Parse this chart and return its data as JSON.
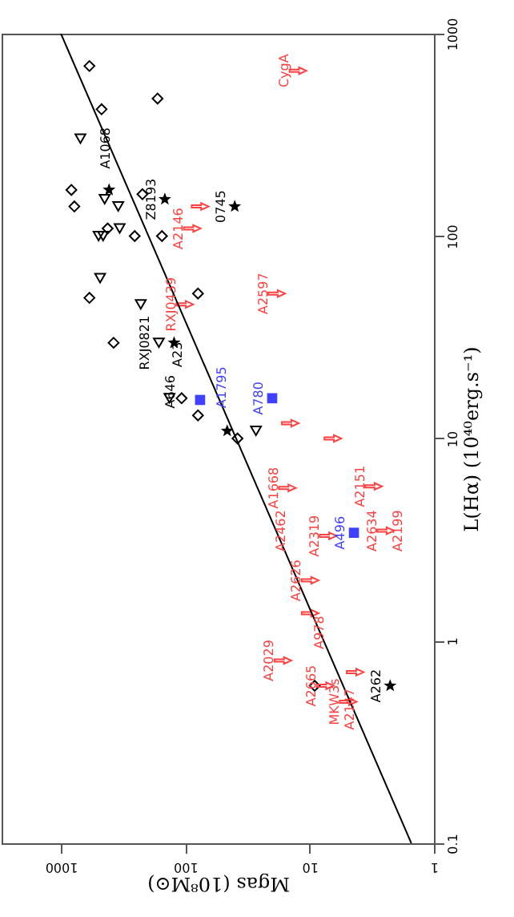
{
  "chart_data": {
    "type": "scatter",
    "xlabel": "Mgas (10⁸M⊙)",
    "ylabel": "L(Hα) (10⁴⁰erg.s⁻¹)",
    "xlim": [
      3000,
      1
    ],
    "ylim": [
      0.1,
      1000
    ],
    "xticks": [
      1000,
      100,
      10,
      1
    ],
    "yticks": [
      1000,
      100,
      10,
      1,
      0.1
    ],
    "log": "xy",
    "series": [
      {
        "type": "scatter",
        "marker": "diamond",
        "color": "#000000",
        "x": [
          590,
          471,
          167,
          824,
          780,
          221,
          421,
          255,
          154,
          590,
          79,
          377,
          107,
          79,
          38,
          9.1
        ],
        "values": [
          692,
          423,
          478,
          169,
          140,
          161,
          109,
          100,
          100,
          49.5,
          52,
          29.7,
          15.8,
          13.0,
          10,
          0.6
        ]
      },
      {
        "type": "scatter",
        "marker": "triangle",
        "color": "#000000",
        "x": [
          697,
          445,
          346,
          337,
          498,
          458,
          484,
          228,
          163,
          134,
          27
        ],
        "values": [
          303,
          152,
          140,
          109,
          100,
          100,
          62,
          46,
          29.7,
          15.8,
          10.9
        ]
      },
      {
        "type": "scatter",
        "marker": "star",
        "color": "#000000",
        "x": [
          410,
          146,
          40,
          123,
          46,
          2.25
        ],
        "values": [
          169,
          152,
          140,
          29.7,
          10.9,
          0.6
        ]
      },
      {
        "type": "scatter",
        "marker": "square",
        "color": "#4040ff",
        "x": [
          76,
          20,
          4.4
        ],
        "values": [
          15.5,
          15.8,
          3.42
        ]
      },
      {
        "type": "scatter",
        "color": "#ff4040",
        "x": [
          12.4,
          76,
          88,
          101,
          18.4,
          14.3,
          6.5,
          15.1,
          3.06,
          7.1,
          2.45,
          9.9,
          9.9,
          16.4,
          7.5,
          4.3,
          4.9
        ],
        "values": [
          656,
          140,
          109,
          46,
          52,
          11.9,
          10,
          5.7,
          5.8,
          3.3,
          3.5,
          1.99,
          1.37,
          0.8,
          0.6,
          0.7,
          0.5
        ]
      },
      {
        "type": "line",
        "color": "#000000",
        "x": [
          1000,
          1.52
        ],
        "values": [
          1000,
          0.1
        ]
      }
    ],
    "annotations": [
      {
        "text": "A1068",
        "x": 433,
        "y": 272
      },
      {
        "text": "Z8193",
        "x": 146,
        "y": 152
      },
      {
        "text": "0745",
        "x": 40,
        "y": 140
      },
      {
        "text": "CygA",
        "x": 12.4,
        "y": 656
      },
      {
        "text": "RXJ0439",
        "x": 101,
        "y": 46
      },
      {
        "text": "A2146",
        "x": 88,
        "y": 109
      },
      {
        "text": "RXJ0821",
        "x": 163,
        "y": 29.7
      },
      {
        "text": "A23",
        "x": 113,
        "y": 26
      },
      {
        "text": "A2597",
        "x": 18.4,
        "y": 52
      },
      {
        "text": "A1795",
        "x": 50,
        "y": 17.9
      },
      {
        "text": "A780",
        "x": 20,
        "y": 15.8
      },
      {
        "text": "A646",
        "x": 130,
        "y": 17
      },
      {
        "text": "A1668",
        "x": 15.1,
        "y": 5.7
      },
      {
        "text": "A2319",
        "x": 7.1,
        "y": 3.3
      },
      {
        "text": "A2462",
        "x": 16.8,
        "y": 3.5
      },
      {
        "text": "A496",
        "x": 4.4,
        "y": 3.42
      },
      {
        "text": "A2151",
        "x": 3.06,
        "y": 5.8
      },
      {
        "text": "A2634",
        "x": 2.45,
        "y": 3.5
      },
      {
        "text": "A2199",
        "x": 2.45,
        "y": 3.5
      },
      {
        "text": "A2626",
        "x": 9.9,
        "y": 1.99
      },
      {
        "text": "A978",
        "x": 8.2,
        "y": 1.1
      },
      {
        "text": "A2029",
        "x": 16.4,
        "y": 0.8
      },
      {
        "text": "A2665",
        "x": 7.5,
        "y": 0.6
      },
      {
        "text": "MKW3s",
        "x": 4.9,
        "y": 0.5
      },
      {
        "text": "A2147",
        "x": 4.7,
        "y": 0.46
      },
      {
        "text": "A262",
        "x": 2.25,
        "y": 0.6
      }
    ]
  }
}
